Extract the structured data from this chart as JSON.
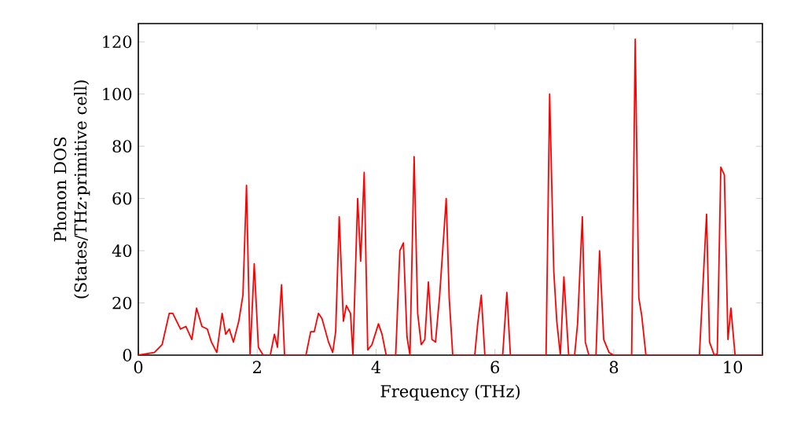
{
  "chart_data": {
    "type": "line",
    "xlabel": "Frequency (THz)",
    "ylabel": "Phonon DOS (States/THz·primitive cell)",
    "x": [
      0,
      0.27,
      0.4,
      0.52,
      0.58,
      0.71,
      0.8,
      0.9,
      0.98,
      1.07,
      1.16,
      1.23,
      1.32,
      1.41,
      1.47,
      1.53,
      1.6,
      1.69,
      1.76,
      1.82,
      1.88,
      1.95,
      2.02,
      2.1,
      2.22,
      2.29,
      2.34,
      2.41,
      2.46,
      2.82,
      2.9,
      2.96,
      3.03,
      3.09,
      3.2,
      3.27,
      3.32,
      3.38,
      3.45,
      3.5,
      3.57,
      3.61,
      3.69,
      3.74,
      3.8,
      3.86,
      3.93,
      4.04,
      4.1,
      4.17,
      4.33,
      4.4,
      4.46,
      4.52,
      4.57,
      4.64,
      4.7,
      4.76,
      4.82,
      4.88,
      4.94,
      5.0,
      5.07,
      5.18,
      5.23,
      5.29,
      5.66,
      5.71,
      5.77,
      5.83,
      6.13,
      6.2,
      6.26,
      6.86,
      6.92,
      6.99,
      7.04,
      7.1,
      7.16,
      7.24,
      7.34,
      7.39,
      7.47,
      7.52,
      7.58,
      7.7,
      7.76,
      7.83,
      7.92,
      8.0,
      8.3,
      8.36,
      8.42,
      8.47,
      8.54,
      9.44,
      9.56,
      9.61,
      9.69,
      9.74,
      9.8,
      9.86,
      9.92,
      9.97,
      10.04,
      10.5
    ],
    "values": [
      0,
      1,
      4,
      16,
      16,
      10,
      11,
      6,
      18,
      11,
      10,
      5,
      1,
      16,
      8,
      10,
      5,
      13,
      23,
      65,
      0,
      35,
      3,
      0,
      0,
      8,
      3,
      27,
      0,
      0,
      9,
      9,
      16,
      14,
      5,
      1,
      9,
      53,
      13,
      19,
      16,
      0,
      60,
      36,
      70,
      2,
      4,
      12,
      8,
      0,
      0,
      40,
      43,
      7,
      0,
      76,
      16,
      4,
      6,
      28,
      6,
      5,
      23,
      60,
      22,
      0,
      0,
      12,
      23,
      0,
      0,
      24,
      0,
      0,
      100,
      32,
      13,
      0,
      30,
      0,
      0,
      12,
      53,
      5,
      0,
      0,
      40,
      6,
      1,
      0,
      0,
      121,
      22,
      15,
      0,
      0,
      54,
      5,
      0,
      0.5,
      72,
      69,
      6,
      18,
      0,
      0
    ],
    "color": "#ff0000",
    "xlim": [
      0,
      10.5
    ],
    "ylim": [
      0,
      127
    ],
    "xticks": [
      0,
      2,
      4,
      6,
      8,
      10
    ],
    "yticks": [
      0,
      20,
      40,
      60,
      80,
      100,
      120
    ]
  }
}
